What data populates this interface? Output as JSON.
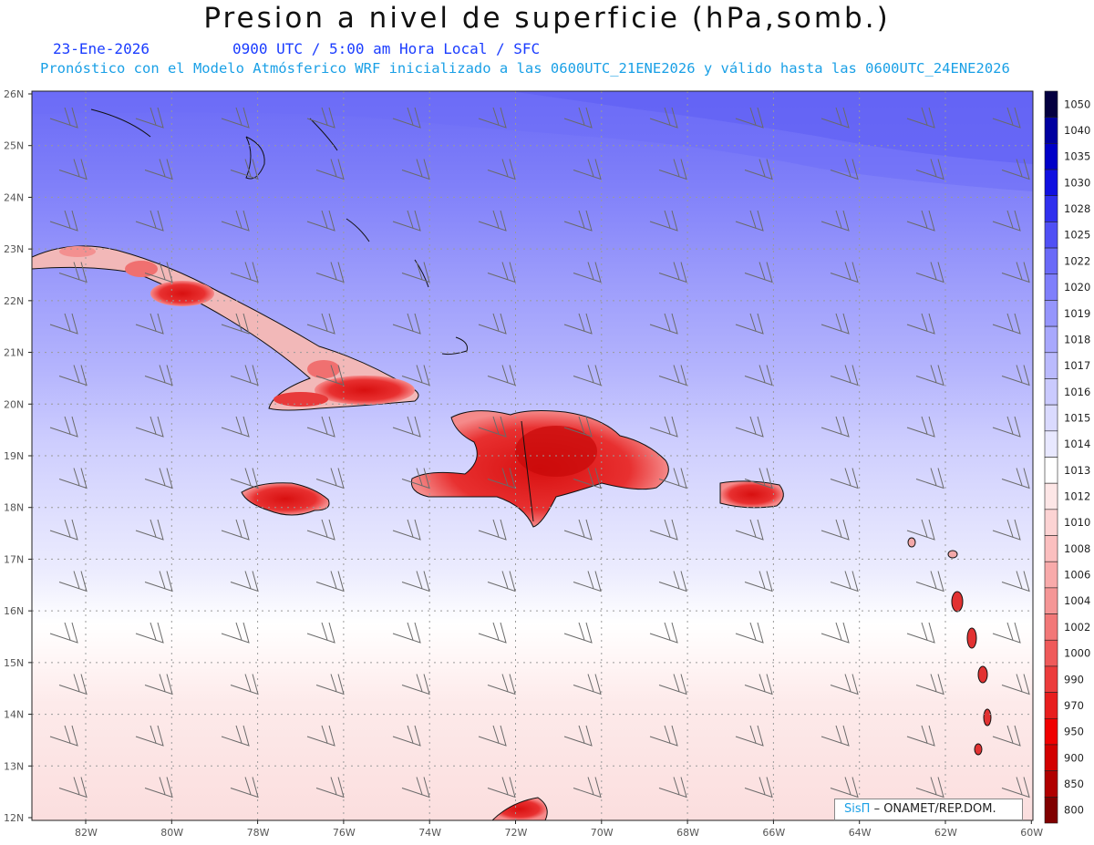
{
  "header": {
    "title": "Presion a nivel de superficie (hPa,somb.)",
    "date": "23-Ene-2026",
    "time_info": "0900 UTC / 5:00 am Hora Local / SFC",
    "model_info": "Pronóstico con el Modelo Atmósferico WRF inicializado a las 0600UTC_21ENE2026 y válido hasta las  0600UTC_24ENE2026"
  },
  "axes": {
    "lat_labels": [
      "26N",
      "25N",
      "24N",
      "23N",
      "22N",
      "21N",
      "20N",
      "19N",
      "18N",
      "17N",
      "16N",
      "15N",
      "14N",
      "13N",
      "12N"
    ],
    "lon_labels": [
      "82W",
      "80W",
      "78W",
      "76W",
      "74W",
      "72W",
      "70W",
      "68W",
      "66W",
      "64W",
      "62W",
      "60W"
    ]
  },
  "colorbar": {
    "levels": [
      "1050",
      "1040",
      "1035",
      "1030",
      "1028",
      "1025",
      "1022",
      "1020",
      "1019",
      "1018",
      "1017",
      "1016",
      "1015",
      "1014",
      "1013",
      "1012",
      "1010",
      "1008",
      "1006",
      "1004",
      "1002",
      "1000",
      "990",
      "970",
      "950",
      "900",
      "850",
      "800"
    ],
    "colors": [
      "#040040",
      "#0000a0",
      "#0000c8",
      "#1010e0",
      "#3030ee",
      "#5050f5",
      "#6a6af8",
      "#7f7ffb",
      "#9595fc",
      "#a8a8fd",
      "#babafd",
      "#cacafe",
      "#dadafe",
      "#e8e8ff",
      "#ffffff",
      "#fde6e6",
      "#fcd3d3",
      "#fbbfbf",
      "#f8aaaa",
      "#f59696",
      "#f27878",
      "#ef5a5a",
      "#ec3c3c",
      "#e81e1e",
      "#f00000",
      "#d20000",
      "#b00000",
      "#800000"
    ]
  },
  "credit": {
    "brand": "SisΠ",
    "text": "– ONAMET/REP.DOM."
  }
}
